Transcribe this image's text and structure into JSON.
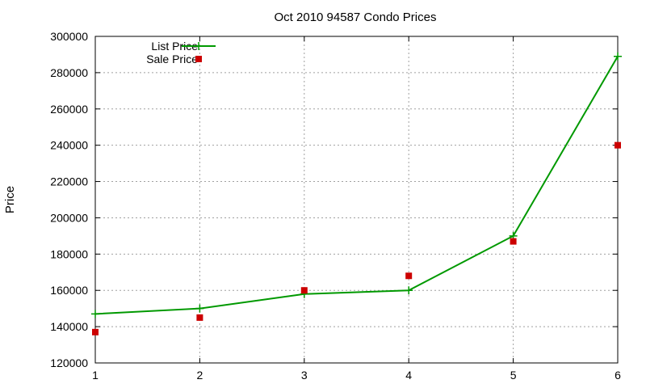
{
  "chart_data": {
    "type": "line",
    "title": "Oct 2010 94587 Condo Prices",
    "xlabel": "",
    "ylabel": "Price",
    "xlim": [
      1,
      6
    ],
    "ylim": [
      120000,
      300000
    ],
    "x_ticks": [
      1,
      2,
      3,
      4,
      5,
      6
    ],
    "y_ticks": [
      120000,
      140000,
      160000,
      180000,
      200000,
      220000,
      240000,
      260000,
      280000,
      300000
    ],
    "grid": true,
    "legend_position": "top-left",
    "series": [
      {
        "name": "List Price",
        "style": "line-with-plus-markers",
        "color": "#009900",
        "x": [
          1,
          2,
          3,
          4,
          5,
          6
        ],
        "values": [
          147000,
          150000,
          158000,
          160000,
          190000,
          289000
        ]
      },
      {
        "name": "Sale Price",
        "style": "square-markers",
        "color": "#cc0000",
        "x": [
          1,
          2,
          3,
          4,
          5,
          6
        ],
        "values": [
          137000,
          145000,
          160000,
          168000,
          187000,
          240000
        ]
      }
    ]
  }
}
